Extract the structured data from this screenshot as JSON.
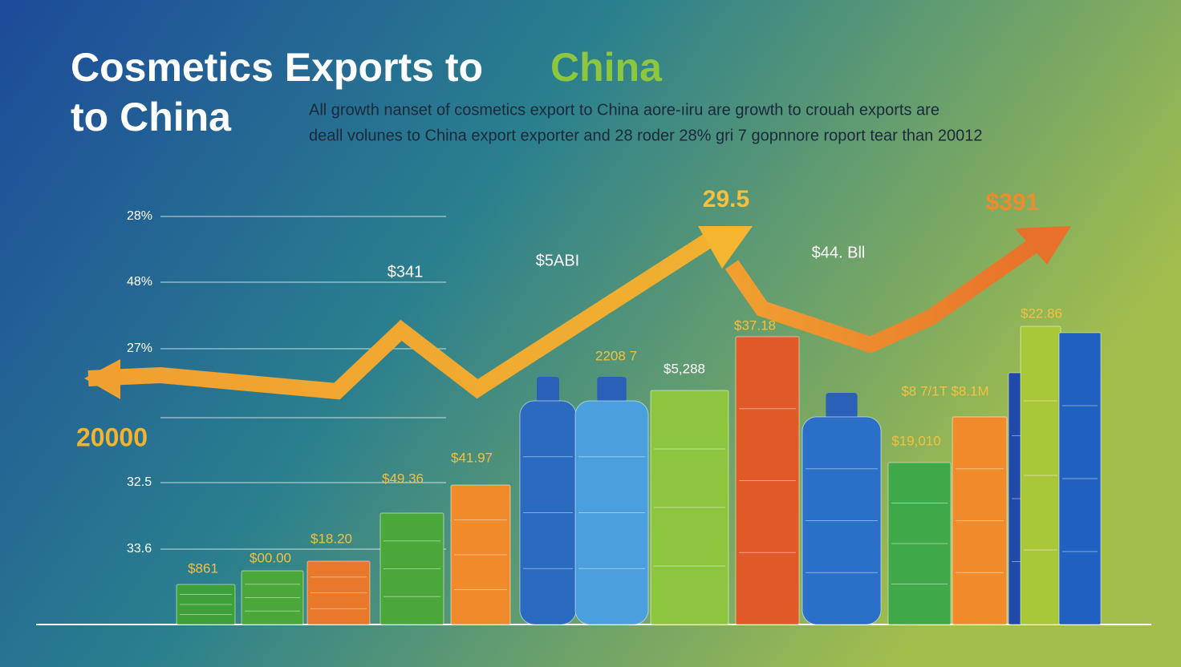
{
  "title": {
    "line1": "Cosmetics Exports to",
    "accent": "China",
    "line2": "to China"
  },
  "subtitle": [
    "All growth nanset of cosmetics export to  China aore-ıiru are growth  to crouah exports are",
    "deall volunes to China export exporter  and 28 roder 28% gri 7 gopnnore roport tear than 20012"
  ],
  "axis_labels": [
    "28%",
    "48%",
    "27%",
    "20000",
    "32.5",
    "33.6"
  ],
  "callouts": [
    "29.5",
    "$391",
    "$341",
    "$5ABI",
    "$44. Bll"
  ],
  "bar_labels": [
    "$861",
    "$00.00",
    "$18.20",
    "$49.36",
    "$41.97",
    "2208 7",
    "$5,288",
    "$37.18",
    "$19,010",
    "$8 7/1T $8.1M",
    "$22.86"
  ]
}
